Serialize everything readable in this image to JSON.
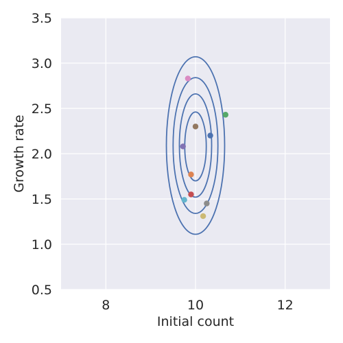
{
  "chart_data": {
    "type": "scatter",
    "xlabel": "Initial count",
    "ylabel": "Growth rate",
    "xlim": [
      7,
      13
    ],
    "ylim": [
      0.5,
      3.5
    ],
    "xticks": [
      8,
      10,
      12
    ],
    "xtick_labels": [
      "8",
      "10",
      "12"
    ],
    "yticks": [
      0.5,
      1.0,
      1.5,
      2.0,
      2.5,
      3.0,
      3.5
    ],
    "ytick_labels": [
      "0.5",
      "1.0",
      "1.5",
      "2.0",
      "2.5",
      "3.0",
      "3.5"
    ],
    "grid": true,
    "background": "#eaeaf2",
    "grid_color": "#ffffff",
    "contour_color": "#4c72b0",
    "points": [
      {
        "x": 10.33,
        "y": 2.2,
        "color": "#4c72b0"
      },
      {
        "x": 9.9,
        "y": 1.77,
        "color": "#dd8452"
      },
      {
        "x": 10.67,
        "y": 2.43,
        "color": "#55a868"
      },
      {
        "x": 9.9,
        "y": 1.55,
        "color": "#c44e52"
      },
      {
        "x": 9.72,
        "y": 2.08,
        "color": "#8172b3"
      },
      {
        "x": 10.0,
        "y": 2.3,
        "color": "#937860"
      },
      {
        "x": 9.83,
        "y": 2.83,
        "color": "#da8bc3"
      },
      {
        "x": 10.25,
        "y": 1.45,
        "color": "#8c8c8c"
      },
      {
        "x": 10.17,
        "y": 1.31,
        "color": "#ccb974"
      },
      {
        "x": 9.75,
        "y": 1.49,
        "color": "#64b5cd"
      }
    ],
    "contours": [
      {
        "cx": 10.0,
        "cy": 2.09,
        "rx": 0.65,
        "ry": 0.98
      },
      {
        "cx": 10.0,
        "cy": 2.09,
        "rx": 0.5,
        "ry": 0.75
      },
      {
        "cx": 10.0,
        "cy": 2.09,
        "rx": 0.36,
        "ry": 0.57
      },
      {
        "cx": 10.0,
        "cy": 2.08,
        "rx": 0.24,
        "ry": 0.38
      }
    ]
  }
}
